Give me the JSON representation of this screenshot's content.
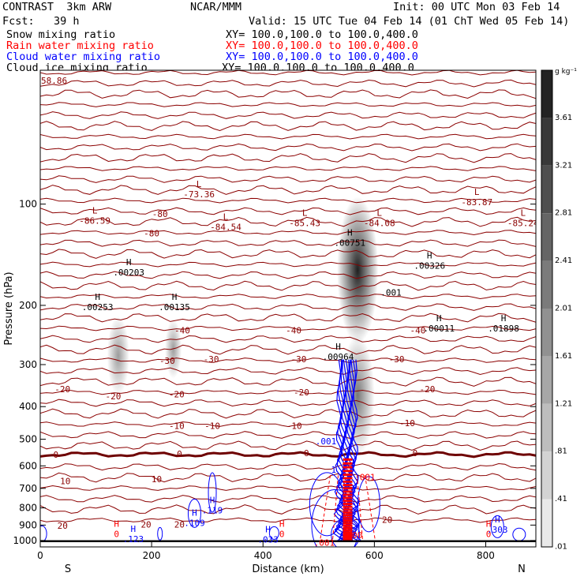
{
  "header": {
    "model": "CONTRAST  3km ARW",
    "org": "NCAR/MMM",
    "init": "Init: 00 UTC Mon 03 Feb 14",
    "fcst": "Fcst:   39 h",
    "valid": "Valid: 15 UTC Tue 04 Feb 14 (01 ChT Wed 05 Feb 14)",
    "fields": [
      {
        "label": "Snow mixing ratio",
        "xy": "XY= 100.0,100.0 to 100.0,400.0",
        "color": "#000000"
      },
      {
        "label": "Rain water mixing ratio",
        "xy": "XY= 100.0,100.0 to 100.0,400.0",
        "color": "#ff0000"
      },
      {
        "label": "Cloud water mixing ratio",
        "xy": "XY= 100.0,100.0 to 100.0,400.0",
        "color": "#0000ff"
      },
      {
        "label": "Cloud ice mixing ratio",
        "xy": "XY= 100.0,100.0 to 100.0,400.0",
        "color": "#000000"
      }
    ]
  },
  "chart_data": {
    "type": "heatmap",
    "xlabel": "Distance (km)",
    "ylabel": "Pressure (hPa)",
    "xlim": [
      0,
      890
    ],
    "ylim": [
      1045,
      40
    ],
    "y_log": true,
    "x_ticks": [
      0,
      200,
      400,
      600,
      800
    ],
    "y_ticks": [
      100,
      200,
      300,
      400,
      500,
      600,
      700,
      800,
      900,
      1000
    ],
    "x_end_labels": {
      "left": "S",
      "right": "N"
    },
    "colorbar": {
      "unit": "g kg⁻¹",
      "ticks": [
        3.61,
        3.21,
        2.81,
        2.41,
        2.01,
        1.61,
        1.21,
        0.81,
        0.41,
        0.01
      ],
      "tick_labels": [
        "3.61",
        "3.21",
        "2.81",
        "2.41",
        "2.01",
        "1.61",
        "1.21",
        ".81",
        ".41",
        ".01"
      ],
      "max": 4.0
    },
    "temperature_contours": {
      "color": "#8b0000",
      "zero_color": "#6e0000",
      "labels": [
        {
          "text": "-80",
          "x": 215,
          "p": 107
        },
        {
          "text": "-80",
          "x": 200,
          "p": 122
        },
        {
          "text": "-40",
          "x": 255,
          "p": 237
        },
        {
          "text": "-40",
          "x": 455,
          "p": 237
        },
        {
          "text": "-40",
          "x": 678,
          "p": 237
        },
        {
          "text": "-30",
          "x": 228,
          "p": 292
        },
        {
          "text": "-30",
          "x": 307,
          "p": 289
        },
        {
          "text": "-30",
          "x": 464,
          "p": 289
        },
        {
          "text": "-30",
          "x": 640,
          "p": 289
        },
        {
          "text": "-20",
          "x": 40,
          "p": 355
        },
        {
          "text": "-20",
          "x": 131,
          "p": 372
        },
        {
          "text": "-20",
          "x": 245,
          "p": 367
        },
        {
          "text": "-20",
          "x": 469,
          "p": 362
        },
        {
          "text": "-20",
          "x": 695,
          "p": 355
        },
        {
          "text": "-10",
          "x": 245,
          "p": 456
        },
        {
          "text": "-10",
          "x": 309,
          "p": 456
        },
        {
          "text": "-10",
          "x": 456,
          "p": 456
        },
        {
          "text": "-10",
          "x": 659,
          "p": 448
        },
        {
          "text": "0",
          "x": 28,
          "p": 555
        },
        {
          "text": "0",
          "x": 250,
          "p": 552
        },
        {
          "text": "0",
          "x": 478,
          "p": 549
        },
        {
          "text": "0",
          "x": 673,
          "p": 549
        },
        {
          "text": "10",
          "x": 45,
          "p": 665
        },
        {
          "text": "10",
          "x": 209,
          "p": 657
        },
        {
          "text": "20",
          "x": 40,
          "p": 902
        },
        {
          "text": "20",
          "x": 190,
          "p": 895
        },
        {
          "text": "20",
          "x": 250,
          "p": 895
        },
        {
          "text": "20",
          "x": 623,
          "p": 867
        }
      ],
      "extrema": [
        {
          "kind": "L",
          "value": "-86.59",
          "x": 98,
          "p": 110
        },
        {
          "kind": "L",
          "value": "-73.36",
          "x": 285,
          "p": 92
        },
        {
          "kind": "L",
          "value": "-84.54",
          "x": 333,
          "p": 115
        },
        {
          "kind": "L",
          "value": "-85.43",
          "x": 475,
          "p": 112
        },
        {
          "kind": "L",
          "value": "-84.08",
          "x": 609,
          "p": 112
        },
        {
          "kind": "L",
          "value": "-83.87",
          "x": 784,
          "p": 97
        },
        {
          "kind": "L",
          "value": "-85.24",
          "x": 867,
          "p": 112
        }
      ],
      "corner_value": "58.86"
    },
    "snow": {
      "color": "#000000",
      "extrema": [
        {
          "value": ".00203",
          "x": 159,
          "p": 157
        },
        {
          "value": ".00253",
          "x": 103,
          "p": 199
        },
        {
          "value": ".00135",
          "x": 241,
          "p": 199
        },
        {
          "value": ".00751",
          "x": 556,
          "p": 128
        },
        {
          "value": ".00326",
          "x": 699,
          "p": 150
        },
        {
          "value": ".00011",
          "x": 716,
          "p": 230
        },
        {
          "value": ".01898",
          "x": 832,
          "p": 230
        },
        {
          "value": ".00964",
          "x": 535,
          "p": 280
        }
      ],
      "labels": [
        {
          "text": ".001",
          "x": 630,
          "p": 183
        }
      ],
      "plumes": [
        {
          "x": 140,
          "p_top": 215,
          "p_bot": 370,
          "peak": 0.81
        },
        {
          "x": 239,
          "p_top": 220,
          "p_bot": 330,
          "peak": 0.81
        },
        {
          "x": 570,
          "p_top": 95,
          "p_bot": 260,
          "peak": 3.61
        },
        {
          "x": 570,
          "p_top": 245,
          "p_bot": 560,
          "peak": 1.61
        }
      ]
    },
    "rain": {
      "color": "#ff0000",
      "extrema": [
        {
          "kind": "H",
          "value": "0",
          "x": 137,
          "p": 940
        },
        {
          "kind": "H",
          "value": "0",
          "x": 434,
          "p": 940
        },
        {
          "kind": "H",
          "value": "0",
          "x": 805,
          "p": 940
        }
      ],
      "labels": [
        {
          "text": ".001",
          "x": 583,
          "p": 648
        },
        {
          "text": ".001",
          "x": 510,
          "p": 1015
        },
        {
          "text": ".400",
          "x": 560,
          "p": 963
        }
      ],
      "core": {
        "x": 552,
        "p_top": 570,
        "p_bot": 1005
      }
    },
    "cloud_water": {
      "color": "#0000ff",
      "extrema": [
        {
          "value": ".119",
          "x": 309,
          "p": 799
        },
        {
          "value": ".109",
          "x": 277,
          "p": 871
        },
        {
          "value": ".303",
          "x": 821,
          "p": 914
        },
        {
          "value": ".123",
          "x": 167,
          "p": 973
        },
        {
          "value": ".033",
          "x": 409,
          "p": 976
        }
      ],
      "labels": [
        {
          "text": ".001",
          "x": 513,
          "p": 507
        },
        {
          "text": "1",
          "x": 527,
          "p": 615
        }
      ],
      "core": {
        "x": 552,
        "p_top": 290,
        "p_bot": 1000
      }
    },
    "ground_p": 1005
  }
}
